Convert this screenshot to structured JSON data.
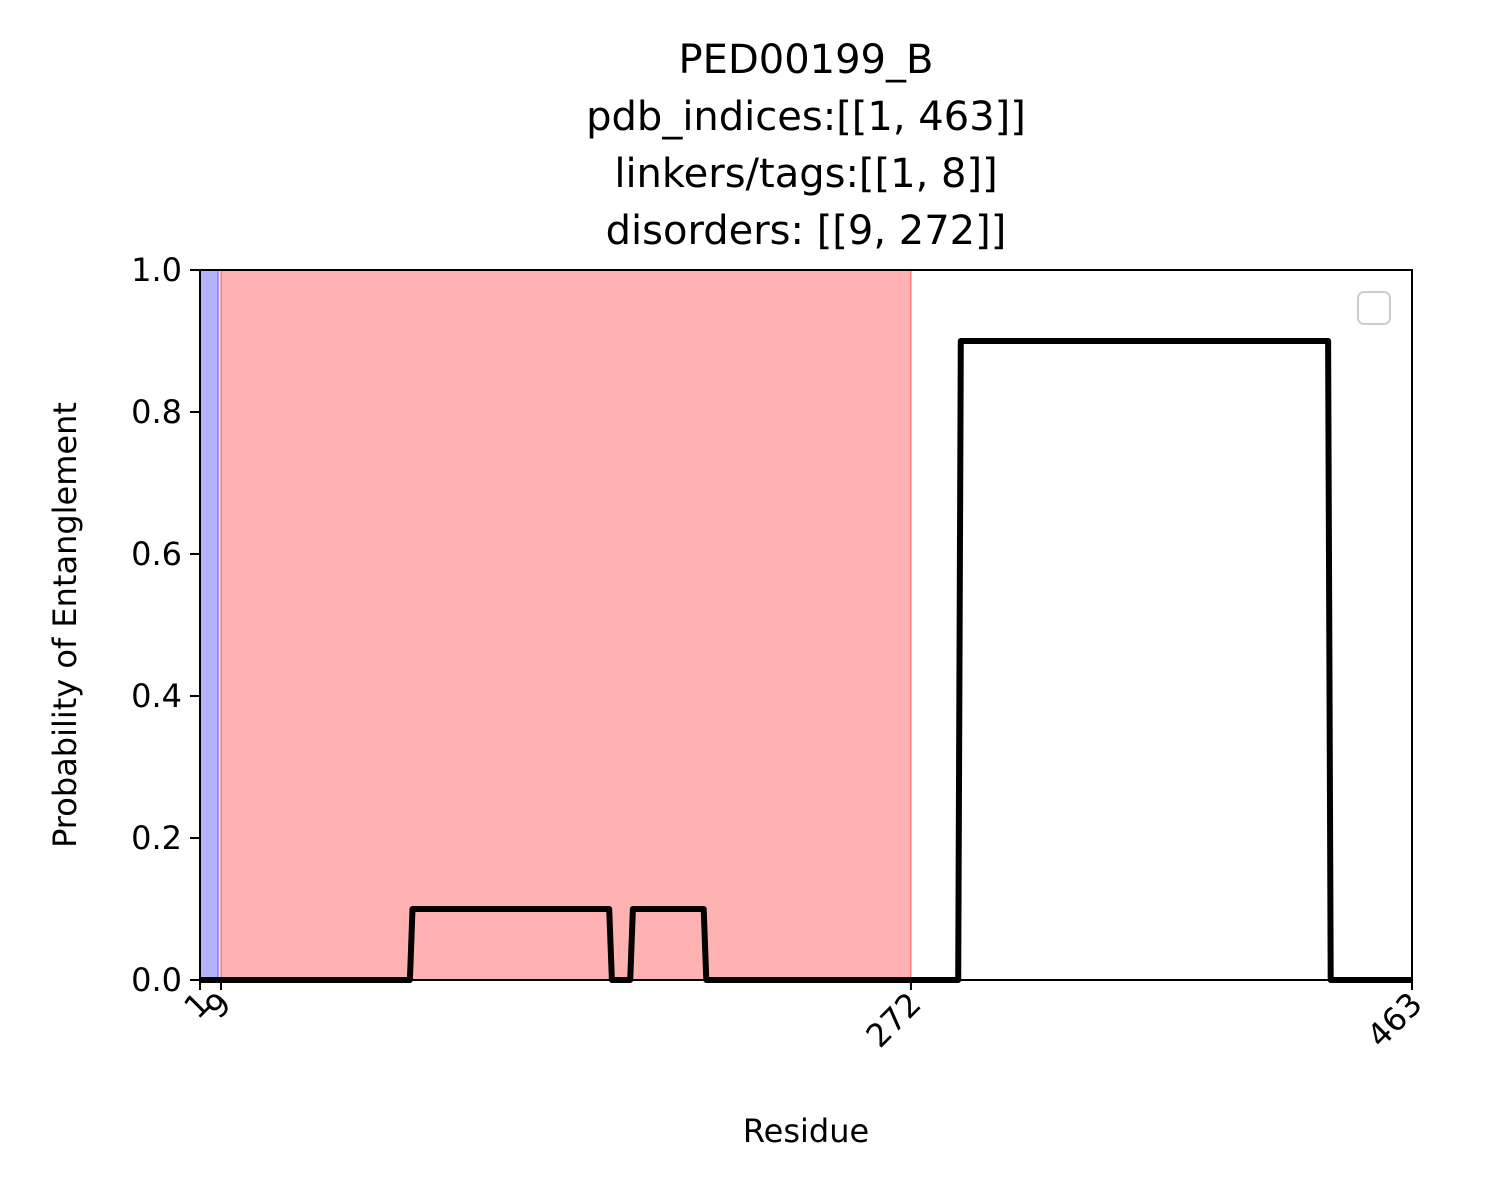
{
  "chart_data": {
    "type": "line",
    "title_lines": [
      "PED00199_B",
      "pdb_indices:[[1, 463]]",
      "linkers/tags:[[1, 8]]",
      "disorders: [[9, 272]]"
    ],
    "xlabel": "Residue",
    "ylabel": "Probability of Entanglement",
    "xlim": [
      1,
      463
    ],
    "ylim": [
      0,
      1.0
    ],
    "x_ticks": [
      1,
      9,
      272,
      463
    ],
    "x_tick_labels": [
      "1",
      "9",
      "272",
      "463"
    ],
    "y_ticks": [
      0.0,
      0.2,
      0.4,
      0.6,
      0.8,
      1.0
    ],
    "y_tick_labels": [
      "0.0",
      "0.2",
      "0.4",
      "0.6",
      "0.8",
      "1.0"
    ],
    "shaded_regions": [
      {
        "name": "linkers/tags",
        "range": [
          1,
          8
        ],
        "color": "#0000ff",
        "alpha": 0.3
      },
      {
        "name": "disorders",
        "range": [
          9,
          272
        ],
        "color": "#ff0000",
        "alpha": 0.3
      }
    ],
    "series": [
      {
        "color": "#000000",
        "x": [
          1,
          81,
          82,
          157,
          158,
          165,
          166,
          193,
          194,
          290,
          291,
          378,
          379,
          431,
          432,
          463
        ],
        "y": [
          0,
          0,
          0.1,
          0.1,
          0,
          0,
          0.1,
          0.1,
          0,
          0,
          0.9,
          0.9,
          0.9,
          0.9,
          0,
          0
        ]
      }
    ],
    "grid": false,
    "legend": {
      "location": "upper right",
      "entries": []
    }
  }
}
